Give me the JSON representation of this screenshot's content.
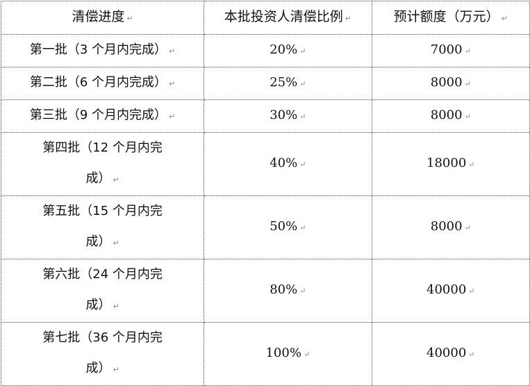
{
  "paragraph_mark": "↵",
  "headers": [
    "清偿进度",
    "本批投资人清偿比例",
    "预计额度（万元）"
  ],
  "rows": [
    {
      "label_lines": [
        "第一批（3 个月内完成）"
      ],
      "ratio": "20%",
      "amount": "7000"
    },
    {
      "label_lines": [
        "第二批（6 个月内完成）"
      ],
      "ratio": "25%",
      "amount": "8000"
    },
    {
      "label_lines": [
        "第三批（9 个月内完成）"
      ],
      "ratio": "30%",
      "amount": "8000"
    },
    {
      "label_lines": [
        "第四批（12 个月内完",
        "成）"
      ],
      "ratio": "40%",
      "amount": "18000"
    },
    {
      "label_lines": [
        "第五批（15 个月内完",
        "成）"
      ],
      "ratio": "50%",
      "amount": "8000"
    },
    {
      "label_lines": [
        "第六批（24 个月内完",
        "成）"
      ],
      "ratio": "80%",
      "amount": "40000"
    },
    {
      "label_lines": [
        "第七批（36 个月内完",
        "成）"
      ],
      "ratio": "100%",
      "amount": "40000"
    }
  ]
}
